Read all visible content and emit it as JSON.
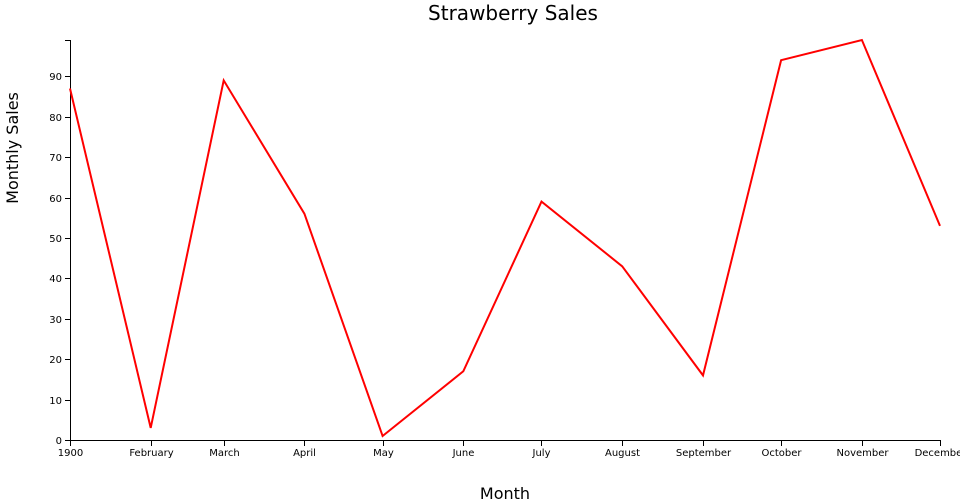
{
  "chart_data": {
    "type": "line",
    "title": "Strawberry Sales",
    "xlabel": "Month",
    "ylabel": "Monthly Sales",
    "categories": [
      "1900",
      "February",
      "March",
      "April",
      "May",
      "June",
      "July",
      "August",
      "September",
      "October",
      "November",
      "December"
    ],
    "values": [
      87,
      3,
      89,
      56,
      1,
      17,
      59,
      43,
      16,
      94,
      99,
      53
    ],
    "x_days": [
      0,
      31,
      59,
      90,
      120,
      151,
      181,
      212,
      243,
      273,
      304,
      334
    ],
    "x_range": [
      0,
      334
    ],
    "ylim": [
      0,
      99
    ],
    "yticks": [
      0,
      10,
      20,
      30,
      40,
      50,
      60,
      70,
      80,
      90
    ],
    "line_color": "#ff0000",
    "grid": false,
    "legend": "none"
  }
}
